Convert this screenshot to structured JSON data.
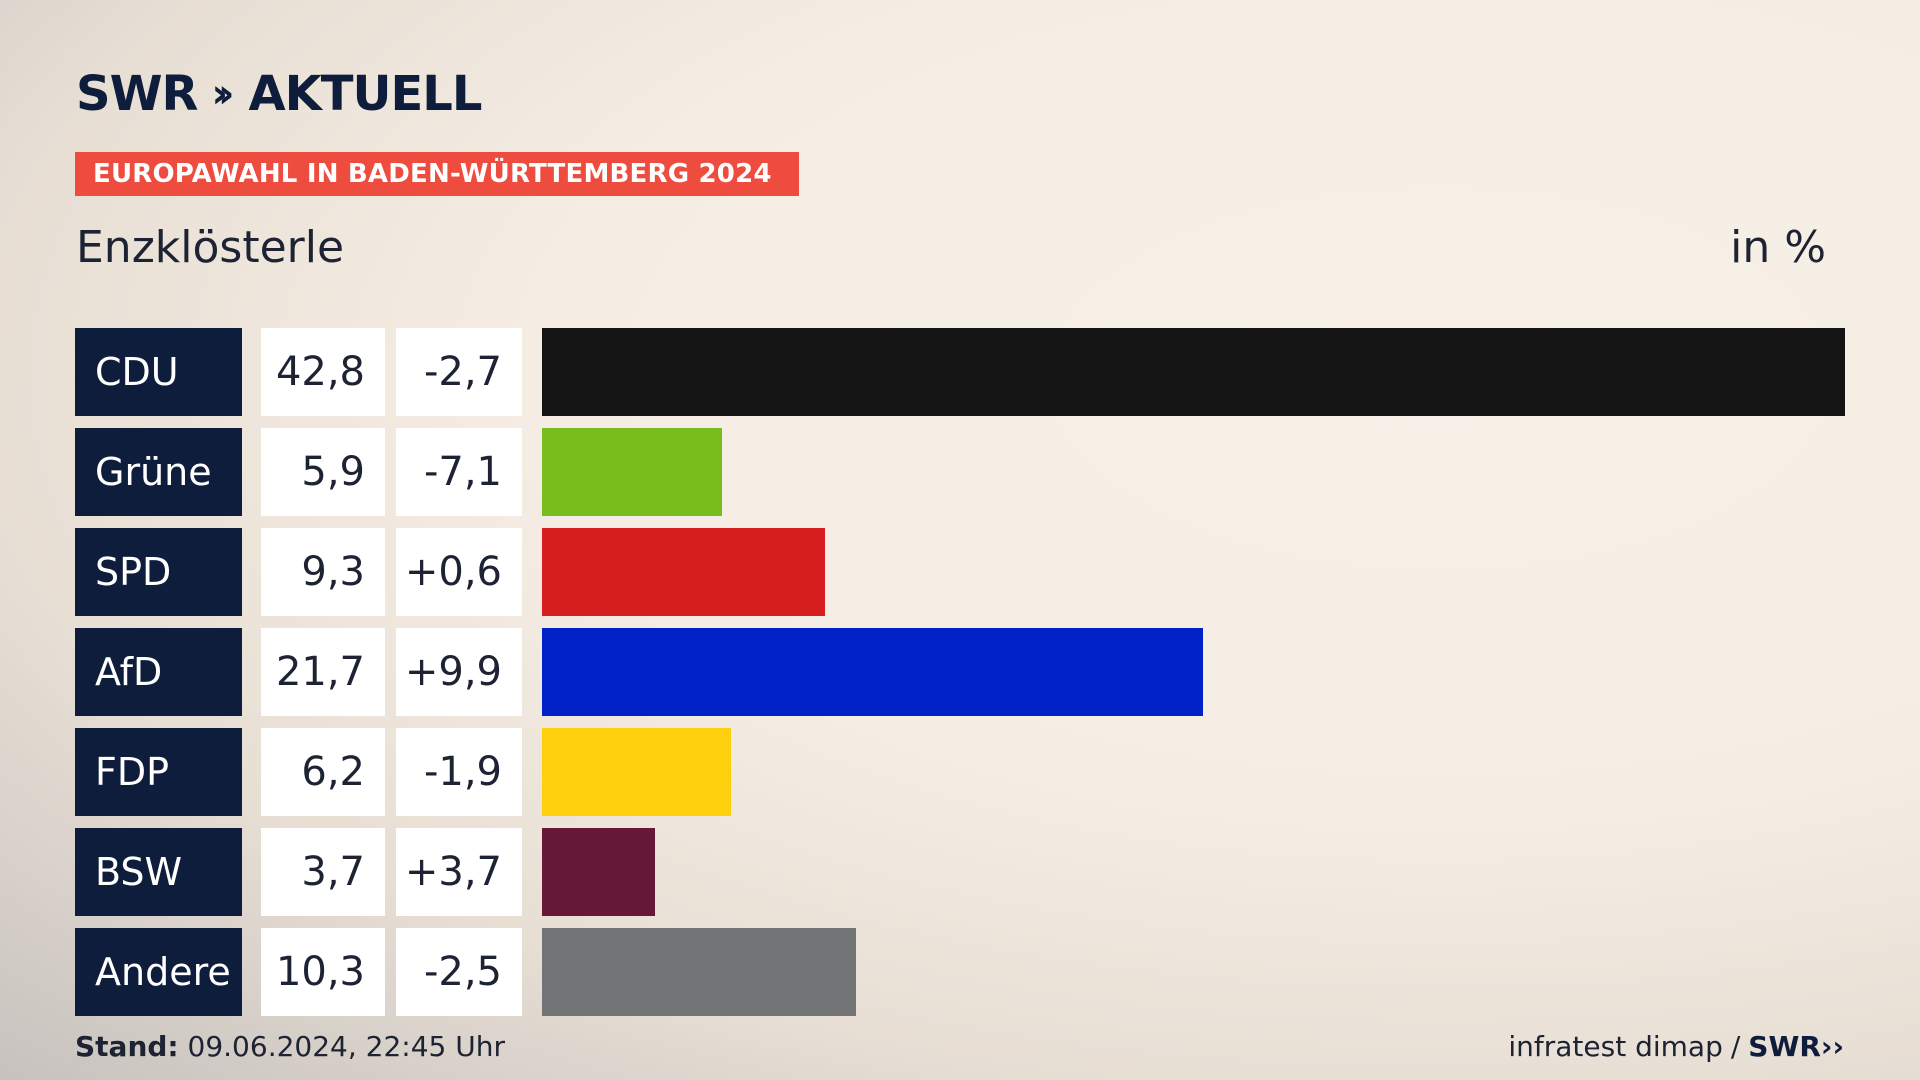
{
  "header": {
    "logo_swr": "SWR",
    "logo_chevrons": "››",
    "logo_aktuell": "AKTUELL",
    "tag": "EUROPAWAHL IN BADEN-WÜRTTEMBERG 2024",
    "region": "Enzklösterle",
    "unit": "in %"
  },
  "footer": {
    "stand_label": "Stand:",
    "stand_value": "09.06.2024, 22:45 Uhr",
    "source": "infratest dimap",
    "separator": "/",
    "source_logo": "SWR",
    "source_logo_chevrons": "››"
  },
  "chart_data": {
    "type": "bar",
    "categories": [
      "CDU",
      "Grüne",
      "SPD",
      "AfD",
      "FDP",
      "BSW",
      "Andere"
    ],
    "values": [
      42.8,
      5.9,
      9.3,
      21.7,
      6.2,
      3.7,
      10.3
    ],
    "labels": [
      "42,8",
      "5,9",
      "9,3",
      "21,7",
      "6,2",
      "3,7",
      "10,3"
    ],
    "changes": [
      "-2,7",
      "-7,1",
      "+0,6",
      "+9,9",
      "-1,9",
      "+3,7",
      "-2,5"
    ],
    "colors": [
      "#141414",
      "#79bd1d",
      "#d81f1f",
      "#0021c8",
      "#fecf0c",
      "#651838",
      "#717374"
    ],
    "orientation": "horizontal",
    "grid": false
  }
}
